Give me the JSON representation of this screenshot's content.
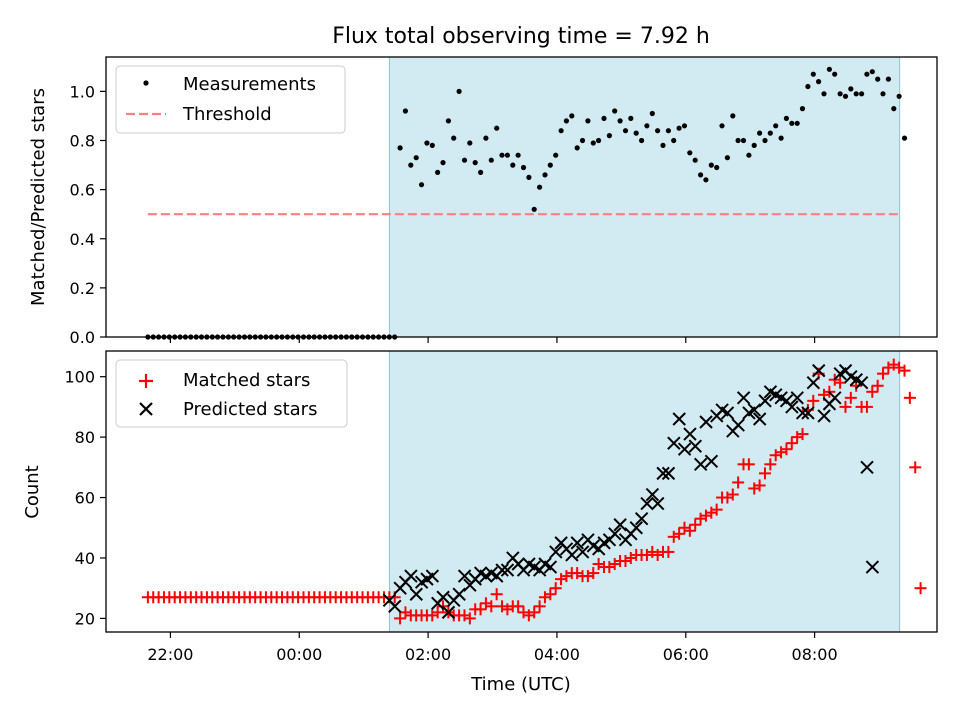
{
  "colors": {
    "measurements": "#000000",
    "threshold": "#ff7f7f",
    "observing_window": "#add8e6",
    "matched": "#ff0000",
    "predicted": "#000000"
  },
  "chart_data": [
    {
      "type": "scatter",
      "title": "Flux total observing time = 7.92 h",
      "xlabel": "",
      "ylabel": "Matched/Predicted stars",
      "x_unit": "hours from 00:00 UTC",
      "xlim": [
        -3.0,
        9.9
      ],
      "ylim": [
        0.0,
        1.14
      ],
      "yticks": [
        0.0,
        0.2,
        0.4,
        0.6,
        0.8,
        1.0
      ],
      "xticks": [
        -2,
        0,
        2,
        4,
        6,
        8
      ],
      "observing_window": [
        1.4,
        9.32
      ],
      "legend": [
        "Measurements",
        "Threshold"
      ],
      "legend_position": "upper left",
      "grid": false,
      "threshold": {
        "name": "Threshold",
        "y": 0.5,
        "x": [
          -2.35,
          9.32
        ]
      },
      "series": [
        {
          "name": "Measurements",
          "marker": "dot",
          "x_start": -2.35,
          "x_step": 0.0833,
          "y": [
            0,
            0,
            0,
            0,
            0,
            0,
            0,
            0,
            0,
            0,
            0,
            0,
            0,
            0,
            0,
            0,
            0,
            0,
            0,
            0,
            0,
            0,
            0,
            0,
            0,
            0,
            0,
            0,
            0,
            0,
            0,
            0,
            0,
            0,
            0,
            0,
            0,
            0,
            0,
            0,
            0,
            0,
            0,
            0,
            0,
            0,
            0,
            0.77,
            0.92,
            0.7,
            0.73,
            0.62,
            0.79,
            0.78,
            0.67,
            0.71,
            0.88,
            0.81,
            1.0,
            0.72,
            0.79,
            0.71,
            0.67,
            0.81,
            0.72,
            0.85,
            0.74,
            0.74,
            0.7,
            0.74,
            0.69,
            0.65,
            0.52,
            0.61,
            0.66,
            0.7,
            0.74,
            0.84,
            0.88,
            0.9,
            0.77,
            0.8,
            0.88,
            0.79,
            0.8,
            0.89,
            0.82,
            0.92,
            0.88,
            0.84,
            0.89,
            0.83,
            0.8,
            0.86,
            0.91,
            0.84,
            0.78,
            0.84,
            0.8,
            0.85,
            0.86,
            0.75,
            0.72,
            0.66,
            0.64,
            0.7,
            0.69,
            0.86,
            0.73,
            0.9,
            0.8,
            0.8,
            0.74,
            0.78,
            0.83,
            0.8,
            0.83,
            0.86,
            0.81,
            0.89,
            0.87,
            0.87,
            0.93,
            1.02,
            1.07,
            1.04,
            0.99,
            1.09,
            1.07,
            0.99,
            0.98,
            1.01,
            0.99,
            0.99,
            1.07,
            1.08,
            1.05,
            0.99,
            1.05,
            0.93,
            0.98,
            0.81
          ]
        }
      ]
    },
    {
      "type": "scatter",
      "xlabel": "Time (UTC)",
      "ylabel": "Count",
      "x_unit": "hours from 00:00 UTC",
      "xlim": [
        -3.0,
        9.9
      ],
      "ylim": [
        15.5,
        108.5
      ],
      "yticks": [
        20,
        40,
        60,
        80,
        100
      ],
      "xticks": [
        -2,
        0,
        2,
        4,
        6,
        8
      ],
      "xticklabels": [
        "22:00",
        "00:00",
        "02:00",
        "04:00",
        "06:00",
        "08:00"
      ],
      "observing_window": [
        1.4,
        9.32
      ],
      "legend": [
        "Matched stars",
        "Predicted stars"
      ],
      "legend_position": "upper left",
      "grid": false,
      "series": [
        {
          "name": "Matched stars",
          "marker": "plus",
          "x_start": -2.35,
          "x_step": 0.0833,
          "y": [
            27,
            27,
            27,
            27,
            27,
            27,
            27,
            27,
            27,
            27,
            27,
            27,
            27,
            27,
            27,
            27,
            27,
            27,
            27,
            27,
            27,
            27,
            27,
            27,
            27,
            27,
            27,
            27,
            27,
            27,
            27,
            27,
            27,
            27,
            27,
            27,
            27,
            27,
            27,
            27,
            27,
            27,
            27,
            27,
            27,
            27,
            27,
            20,
            22,
            21,
            21,
            21,
            21,
            21,
            22,
            24,
            22,
            21,
            21,
            21,
            20,
            23,
            23,
            25,
            24,
            28,
            24,
            23,
            24,
            24,
            22,
            21,
            22,
            24,
            27,
            28,
            30,
            33,
            34,
            35,
            35,
            34,
            34,
            35,
            38,
            37,
            37,
            38,
            39,
            39,
            40,
            41,
            41,
            41,
            42,
            41,
            42,
            42,
            47,
            48,
            50,
            49,
            51,
            53,
            54,
            55,
            56,
            60,
            60,
            61,
            65,
            71,
            71,
            63,
            64,
            68,
            71,
            74,
            75,
            76,
            78,
            80,
            81,
            89,
            92,
            101,
            94,
            95,
            99,
            98,
            90,
            93,
            97,
            90,
            90,
            95,
            97,
            101,
            103,
            104,
            103,
            102,
            93,
            70,
            30
          ]
        },
        {
          "name": "Predicted stars",
          "marker": "x",
          "x_start": 1.4,
          "x_step": 0.0833,
          "y": [
            26,
            24,
            30,
            32,
            34,
            28,
            32,
            33,
            34,
            25,
            27,
            22,
            26,
            28,
            34,
            31,
            33,
            35,
            34,
            35,
            34,
            36,
            36,
            40,
            38,
            36,
            38,
            37,
            36,
            38,
            37,
            42,
            45,
            43,
            41,
            45,
            42,
            46,
            44,
            43,
            45,
            46,
            48,
            51,
            46,
            48,
            50,
            53,
            58,
            61,
            58,
            68,
            68,
            78,
            86,
            76,
            81,
            77,
            71,
            85,
            72,
            87,
            89,
            88,
            82,
            84,
            93,
            88,
            89,
            86,
            92,
            95,
            94,
            93,
            92,
            90,
            93,
            88,
            88,
            98,
            102,
            87,
            91,
            93,
            101,
            102,
            100,
            99,
            98,
            70,
            37
          ]
        }
      ]
    }
  ]
}
